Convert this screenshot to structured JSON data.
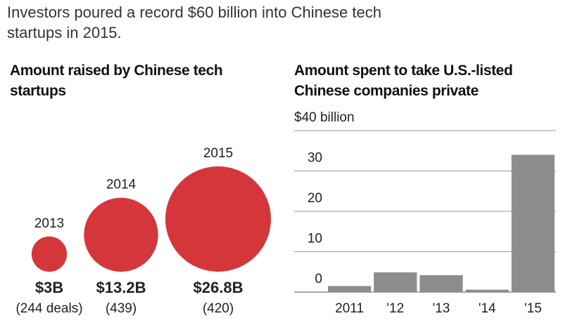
{
  "headline": "Investors poured a record $60 billion into Chinese tech startups in 2015.",
  "chart_data": [
    {
      "type": "bubble",
      "title": "Amount raised by Chinese tech startups",
      "categories": [
        "2013",
        "2014",
        "2015"
      ],
      "values": [
        3,
        13.2,
        26.8
      ],
      "value_labels": [
        "$3B",
        "$13.2B",
        "$26.8B"
      ],
      "deal_labels": [
        "(244 deals)",
        "(439)",
        "(420)"
      ],
      "color": "#d5363c"
    },
    {
      "type": "bar",
      "title": "Amount spent to take U.S.-listed Chinese companies private",
      "categories": [
        "2011",
        "'12",
        "'13",
        "'14",
        "'15"
      ],
      "values": [
        1.5,
        4.9,
        4.2,
        0.6,
        34
      ],
      "color": "#8c8c8c",
      "ylim": [
        0,
        40
      ],
      "yticks": [
        0,
        10,
        20,
        30,
        {
          "value": 40,
          "label": "$40 billion"
        }
      ],
      "grid": true
    }
  ]
}
